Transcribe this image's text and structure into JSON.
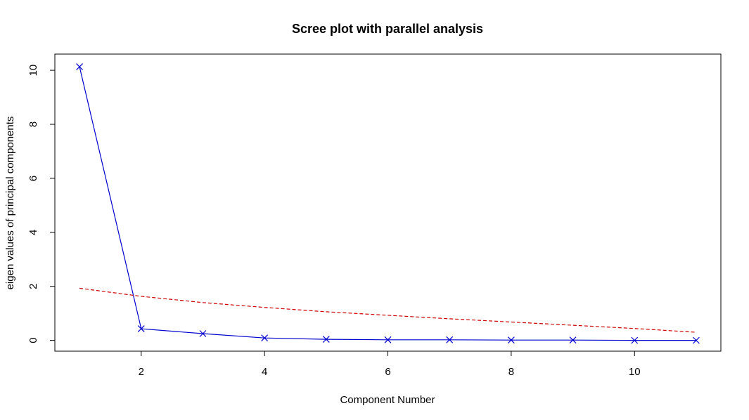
{
  "chart_data": {
    "type": "line",
    "title": "Scree plot with parallel analysis",
    "xlabel": "Component Number",
    "ylabel": "eigen values of principal components",
    "xlim": [
      0.6,
      11.4
    ],
    "ylim": [
      -0.4,
      10.6
    ],
    "x_ticks": [
      2,
      4,
      6,
      8,
      10
    ],
    "y_ticks": [
      0,
      2,
      4,
      6,
      8,
      10
    ],
    "grid": false,
    "series": [
      {
        "color": "#0000CD",
        "line_style": "solid",
        "marker": "x",
        "x": [
          1,
          2,
          3,
          4,
          5,
          6,
          7,
          8,
          9,
          10,
          11
        ],
        "values": [
          10.13,
          0.43,
          0.25,
          0.09,
          0.04,
          0.02,
          0.02,
          0.01,
          0.01,
          0.0,
          0.0
        ]
      },
      {
        "color": "#CC0000",
        "line_style": "dashed",
        "marker": "none",
        "x": [
          1,
          2,
          3,
          4,
          5,
          6,
          7,
          8,
          9,
          10,
          11
        ],
        "values": [
          1.93,
          1.63,
          1.4,
          1.22,
          1.06,
          0.93,
          0.8,
          0.68,
          0.56,
          0.44,
          0.3
        ]
      }
    ]
  }
}
